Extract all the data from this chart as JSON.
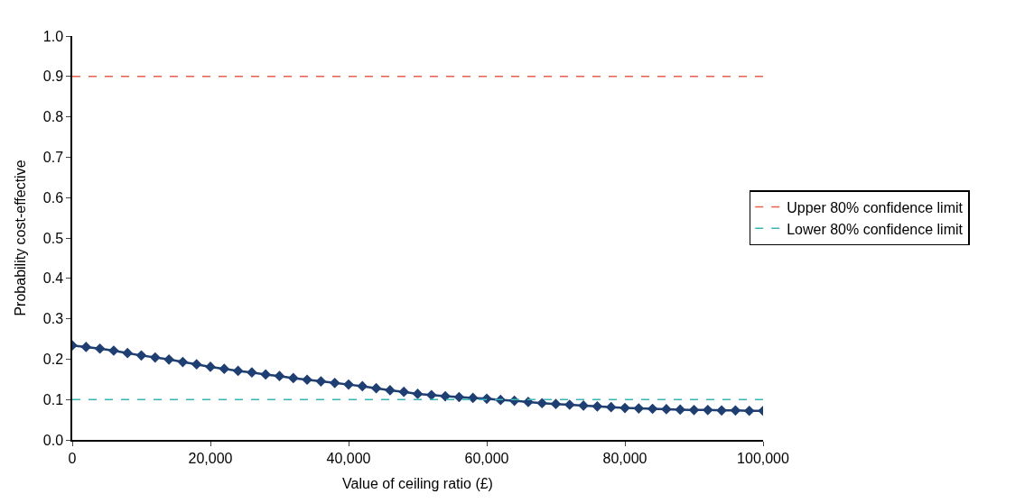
{
  "chart_data": {
    "type": "line",
    "xlabel": "Value of ceiling ratio (£)",
    "ylabel": "Probability cost-effective",
    "xlim": [
      0,
      100000
    ],
    "xticks": [
      {
        "value": 0,
        "label": "0"
      },
      {
        "value": 20000,
        "label": "20,000"
      },
      {
        "value": 40000,
        "label": "40,000"
      },
      {
        "value": 60000,
        "label": "60,000"
      },
      {
        "value": 80000,
        "label": "80,000"
      },
      {
        "value": 100000,
        "label": "100,000"
      }
    ],
    "ylim": [
      0,
      1
    ],
    "yticks": [
      {
        "value": 0,
        "label": "0.0"
      },
      {
        "value": 0.1,
        "label": "0.1"
      },
      {
        "value": 0.2,
        "label": "0.2"
      },
      {
        "value": 0.3,
        "label": "0.3"
      },
      {
        "value": 0.4,
        "label": "0.4"
      },
      {
        "value": 0.5,
        "label": "0.5"
      },
      {
        "value": 0.6,
        "label": "0.6"
      },
      {
        "value": 0.7,
        "label": "0.7"
      },
      {
        "value": 0.8,
        "label": "0.8"
      },
      {
        "value": 0.9,
        "label": "0.9"
      },
      {
        "value": 1.0,
        "label": "1.0"
      }
    ],
    "legend": "right",
    "series": [
      {
        "color": "#1f3f73",
        "marker": "diamond",
        "line_style": "solid",
        "x": [
          0,
          2000,
          4000,
          6000,
          8000,
          10000,
          12000,
          14000,
          16000,
          18000,
          20000,
          22000,
          24000,
          26000,
          28000,
          30000,
          32000,
          34000,
          36000,
          38000,
          40000,
          42000,
          44000,
          46000,
          48000,
          50000,
          52000,
          54000,
          56000,
          58000,
          60000,
          62000,
          64000,
          66000,
          68000,
          70000,
          72000,
          74000,
          76000,
          78000,
          80000,
          82000,
          84000,
          86000,
          88000,
          90000,
          92000,
          94000,
          96000,
          98000,
          100000
        ],
        "values": [
          0.234,
          0.23,
          0.226,
          0.221,
          0.215,
          0.209,
          0.204,
          0.199,
          0.193,
          0.187,
          0.181,
          0.176,
          0.171,
          0.167,
          0.162,
          0.158,
          0.153,
          0.149,
          0.145,
          0.141,
          0.137,
          0.133,
          0.128,
          0.123,
          0.119,
          0.114,
          0.111,
          0.108,
          0.106,
          0.104,
          0.102,
          0.099,
          0.097,
          0.094,
          0.091,
          0.089,
          0.087,
          0.085,
          0.083,
          0.081,
          0.079,
          0.078,
          0.077,
          0.076,
          0.075,
          0.074,
          0.074,
          0.073,
          0.073,
          0.072,
          0.072
        ]
      },
      {
        "name": "Upper 80% confidence limit",
        "color": "#e8604c",
        "marker": "none",
        "line_style": "dashed",
        "x": [
          0,
          100000
        ],
        "values": [
          0.9,
          0.9
        ]
      },
      {
        "name": "Lower 80% confidence limit",
        "color": "#3bb6b6",
        "marker": "none",
        "line_style": "dashed",
        "x": [
          0,
          100000
        ],
        "values": [
          0.1,
          0.1
        ]
      }
    ]
  }
}
